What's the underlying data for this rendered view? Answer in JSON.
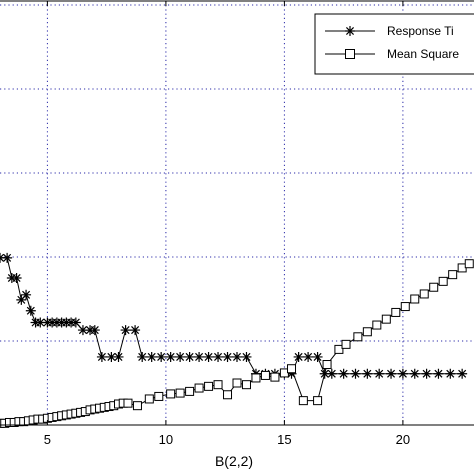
{
  "chart_data": {
    "type": "line",
    "xlabel": "B(2,2)",
    "ylabel": "",
    "title": "",
    "xlim": [
      3,
      23
    ],
    "ylim": [
      0,
      5
    ],
    "x_ticks": [
      5,
      10,
      15,
      20
    ],
    "x_gridlines": [
      5,
      10,
      15,
      20
    ],
    "y_gridlines": [
      1,
      2,
      3,
      4,
      5
    ],
    "grid": true,
    "legend_position": "top-right",
    "series": [
      {
        "name": "Response Ti",
        "marker": "asterisk",
        "color": "#000000",
        "points": [
          [
            3.0,
            1.99
          ],
          [
            3.3,
            1.99
          ],
          [
            3.5,
            1.75
          ],
          [
            3.7,
            1.75
          ],
          [
            3.9,
            1.49
          ],
          [
            4.1,
            1.55
          ],
          [
            4.3,
            1.36
          ],
          [
            4.5,
            1.22
          ],
          [
            4.7,
            1.22
          ],
          [
            5.0,
            1.22
          ],
          [
            5.2,
            1.22
          ],
          [
            5.4,
            1.22
          ],
          [
            5.6,
            1.22
          ],
          [
            5.8,
            1.22
          ],
          [
            6.0,
            1.22
          ],
          [
            6.2,
            1.22
          ],
          [
            6.5,
            1.13
          ],
          [
            6.8,
            1.13
          ],
          [
            7.0,
            1.13
          ],
          [
            7.3,
            0.81
          ],
          [
            7.7,
            0.81
          ],
          [
            8.0,
            0.81
          ],
          [
            8.3,
            1.13
          ],
          [
            8.7,
            1.13
          ],
          [
            9.0,
            0.81
          ],
          [
            9.4,
            0.81
          ],
          [
            9.8,
            0.81
          ],
          [
            10.2,
            0.81
          ],
          [
            10.6,
            0.81
          ],
          [
            11.0,
            0.81
          ],
          [
            11.4,
            0.81
          ],
          [
            11.8,
            0.81
          ],
          [
            12.2,
            0.81
          ],
          [
            12.6,
            0.81
          ],
          [
            13.0,
            0.81
          ],
          [
            13.4,
            0.81
          ],
          [
            13.8,
            0.61
          ],
          [
            14.2,
            0.61
          ],
          [
            14.6,
            0.61
          ],
          [
            15.0,
            0.61
          ],
          [
            15.3,
            0.61
          ],
          [
            15.6,
            0.81
          ],
          [
            16.0,
            0.81
          ],
          [
            16.4,
            0.81
          ],
          [
            16.7,
            0.61
          ],
          [
            17.0,
            0.61
          ],
          [
            17.5,
            0.61
          ],
          [
            18.0,
            0.61
          ],
          [
            18.5,
            0.61
          ],
          [
            19.0,
            0.61
          ],
          [
            19.5,
            0.61
          ],
          [
            20.0,
            0.61
          ],
          [
            20.5,
            0.61
          ],
          [
            21.0,
            0.61
          ],
          [
            21.5,
            0.61
          ],
          [
            22.0,
            0.61
          ],
          [
            22.5,
            0.61
          ]
        ]
      },
      {
        "name": "Mean Square",
        "marker": "square",
        "color": "#000000",
        "points": [
          [
            3.0,
            0.02
          ],
          [
            3.2,
            0.02
          ],
          [
            3.4,
            0.03
          ],
          [
            3.6,
            0.03
          ],
          [
            3.8,
            0.04
          ],
          [
            4.0,
            0.04
          ],
          [
            4.2,
            0.05
          ],
          [
            4.4,
            0.06
          ],
          [
            4.6,
            0.07
          ],
          [
            4.8,
            0.07
          ],
          [
            5.0,
            0.08
          ],
          [
            5.2,
            0.09
          ],
          [
            5.4,
            0.1
          ],
          [
            5.6,
            0.11
          ],
          [
            5.8,
            0.12
          ],
          [
            6.0,
            0.13
          ],
          [
            6.2,
            0.14
          ],
          [
            6.4,
            0.15
          ],
          [
            6.6,
            0.16
          ],
          [
            6.8,
            0.18
          ],
          [
            7.0,
            0.19
          ],
          [
            7.2,
            0.2
          ],
          [
            7.4,
            0.21
          ],
          [
            7.6,
            0.22
          ],
          [
            7.8,
            0.23
          ],
          [
            8.0,
            0.25
          ],
          [
            8.2,
            0.26
          ],
          [
            8.4,
            0.26
          ],
          [
            8.8,
            0.23
          ],
          [
            9.3,
            0.31
          ],
          [
            9.7,
            0.34
          ],
          [
            10.2,
            0.37
          ],
          [
            10.6,
            0.38
          ],
          [
            11.0,
            0.4
          ],
          [
            11.4,
            0.44
          ],
          [
            11.8,
            0.46
          ],
          [
            12.2,
            0.48
          ],
          [
            12.6,
            0.36
          ],
          [
            13.0,
            0.5
          ],
          [
            13.4,
            0.48
          ],
          [
            13.8,
            0.56
          ],
          [
            14.2,
            0.59
          ],
          [
            14.6,
            0.57
          ],
          [
            15.0,
            0.62
          ],
          [
            15.3,
            0.67
          ],
          [
            15.8,
            0.29
          ],
          [
            16.4,
            0.29
          ],
          [
            16.8,
            0.72
          ],
          [
            17.3,
            0.9
          ],
          [
            17.6,
            0.96
          ],
          [
            18.1,
            1.05
          ],
          [
            18.5,
            1.11
          ],
          [
            18.9,
            1.19
          ],
          [
            19.3,
            1.26
          ],
          [
            19.7,
            1.34
          ],
          [
            20.1,
            1.41
          ],
          [
            20.5,
            1.5
          ],
          [
            20.9,
            1.56
          ],
          [
            21.3,
            1.64
          ],
          [
            21.7,
            1.71
          ],
          [
            22.1,
            1.79
          ],
          [
            22.5,
            1.87
          ],
          [
            22.8,
            1.92
          ]
        ]
      }
    ]
  }
}
